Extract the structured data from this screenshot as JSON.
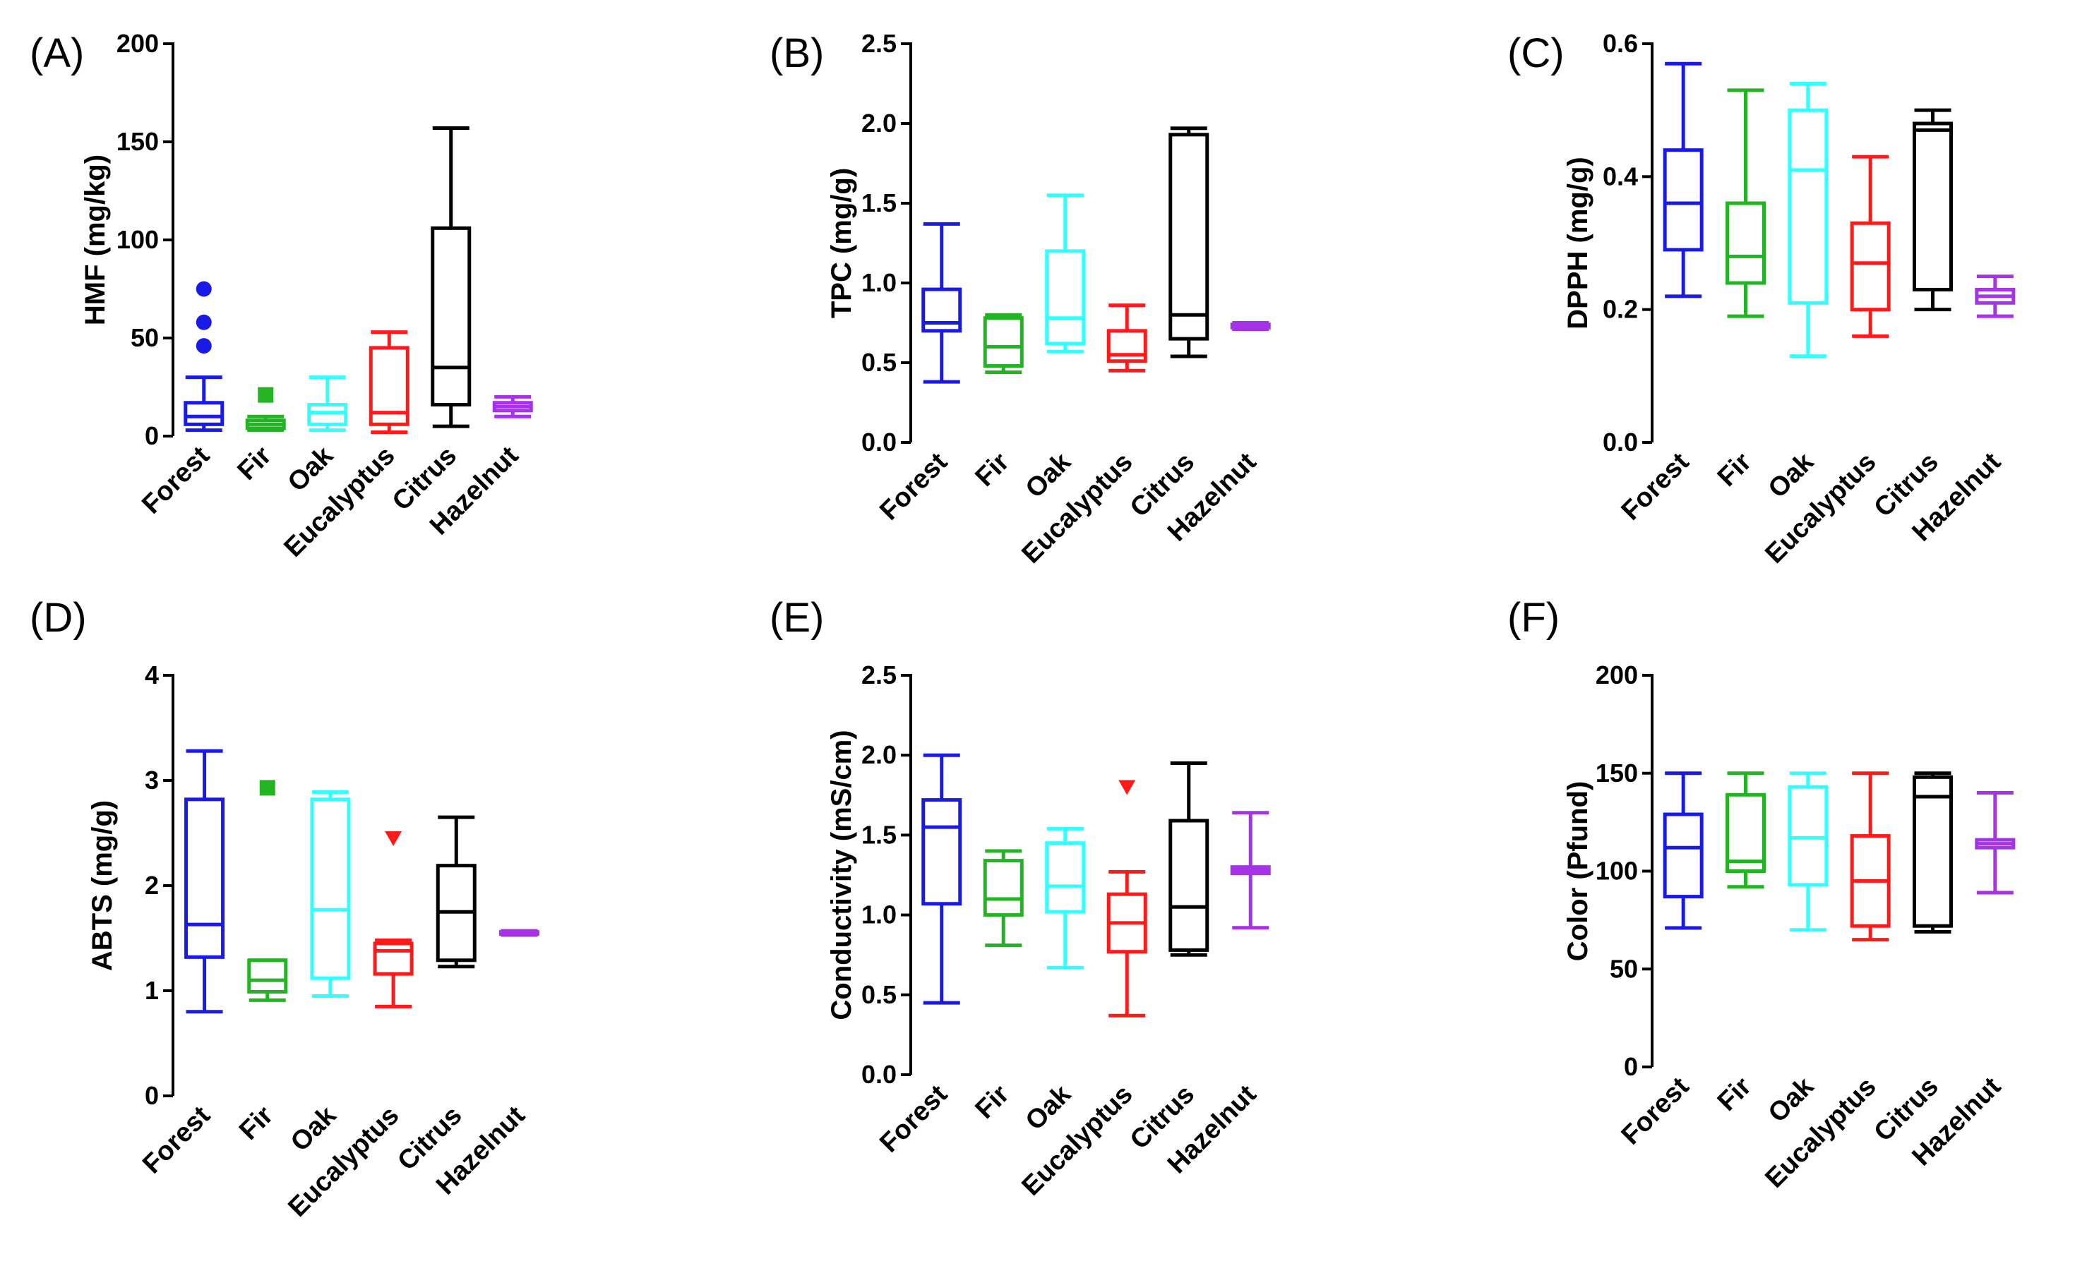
{
  "figure": {
    "background": "#ffffff"
  },
  "chart_data": [
    {
      "panel": "(A)",
      "type": "boxplot",
      "ylabel": "HMF (mg/kg)",
      "ylim": [
        0,
        200
      ],
      "yticks": [
        "0",
        "50",
        "100",
        "150",
        "200"
      ],
      "ytick_values": [
        0,
        50,
        100,
        150,
        200
      ],
      "categories": [
        "Forest",
        "Fir",
        "Oak",
        "Eucalyptus",
        "Citrus",
        "Hazelnut"
      ],
      "colors": [
        "#1a1ae6",
        "#22b422",
        "#33ffff",
        "#ff1a1a",
        "#000000",
        "#a633e6"
      ],
      "boxes": [
        {
          "min": 3,
          "q1": 6,
          "median": 10,
          "q3": 17,
          "max": 30
        },
        {
          "min": 3,
          "q1": 4,
          "median": 6,
          "q3": 8,
          "max": 10
        },
        {
          "min": 3,
          "q1": 6,
          "median": 12,
          "q3": 16,
          "max": 30
        },
        {
          "min": 2,
          "q1": 6,
          "median": 12,
          "q3": 45,
          "max": 53
        },
        {
          "min": 5,
          "q1": 16,
          "median": 35,
          "q3": 106,
          "max": 157
        },
        {
          "min": 10,
          "q1": 13,
          "median": 15,
          "q3": 17,
          "max": 20
        }
      ],
      "outliers": [
        {
          "category": "Forest",
          "value": 75,
          "shape": "circle"
        },
        {
          "category": "Forest",
          "value": 58,
          "shape": "circle"
        },
        {
          "category": "Forest",
          "value": 46,
          "shape": "circle"
        },
        {
          "category": "Fir",
          "value": 21,
          "shape": "square"
        }
      ]
    },
    {
      "panel": "(B)",
      "type": "boxplot",
      "ylabel": "TPC (mg/g)",
      "ylim": [
        0,
        2.5
      ],
      "yticks": [
        "0.0",
        "0.5",
        "1.0",
        "1.5",
        "2.0",
        "2.5"
      ],
      "ytick_values": [
        0,
        0.5,
        1.0,
        1.5,
        2.0,
        2.5
      ],
      "categories": [
        "Forest",
        "Fir",
        "Oak",
        "Eucalyptus",
        "Citrus",
        "Hazelnut"
      ],
      "colors": [
        "#1a1ae6",
        "#22b422",
        "#33ffff",
        "#ff1a1a",
        "#000000",
        "#a633e6"
      ],
      "boxes": [
        {
          "min": 0.38,
          "q1": 0.7,
          "median": 0.75,
          "q3": 0.96,
          "max": 1.37
        },
        {
          "min": 0.44,
          "q1": 0.48,
          "median": 0.6,
          "q3": 0.78,
          "max": 0.8
        },
        {
          "min": 0.57,
          "q1": 0.62,
          "median": 0.78,
          "q3": 1.2,
          "max": 1.55
        },
        {
          "min": 0.45,
          "q1": 0.51,
          "median": 0.55,
          "q3": 0.7,
          "max": 0.86
        },
        {
          "min": 0.54,
          "q1": 0.65,
          "median": 0.8,
          "q3": 1.93,
          "max": 1.97
        },
        {
          "min": 0.71,
          "q1": 0.72,
          "median": 0.73,
          "q3": 0.74,
          "max": 0.75
        }
      ],
      "outliers": []
    },
    {
      "panel": "(C)",
      "type": "boxplot",
      "ylabel": "DPPH (mg/g)",
      "ylim": [
        0,
        0.6
      ],
      "yticks": [
        "0.0",
        "0.2",
        "0.4",
        "0.6"
      ],
      "ytick_values": [
        0,
        0.2,
        0.4,
        0.6
      ],
      "categories": [
        "Forest",
        "Fir",
        "Oak",
        "Eucalyptus",
        "Citrus",
        "Hazelnut"
      ],
      "colors": [
        "#1a1ae6",
        "#22b422",
        "#33ffff",
        "#ff1a1a",
        "#000000",
        "#a633e6"
      ],
      "boxes": [
        {
          "min": 0.22,
          "q1": 0.29,
          "median": 0.36,
          "q3": 0.44,
          "max": 0.57
        },
        {
          "min": 0.19,
          "q1": 0.24,
          "median": 0.28,
          "q3": 0.36,
          "max": 0.53
        },
        {
          "min": 0.13,
          "q1": 0.21,
          "median": 0.41,
          "q3": 0.5,
          "max": 0.54
        },
        {
          "min": 0.16,
          "q1": 0.2,
          "median": 0.27,
          "q3": 0.33,
          "max": 0.43
        },
        {
          "min": 0.2,
          "q1": 0.23,
          "median": 0.47,
          "q3": 0.48,
          "max": 0.5
        },
        {
          "min": 0.19,
          "q1": 0.21,
          "median": 0.22,
          "q3": 0.23,
          "max": 0.25
        }
      ],
      "outliers": []
    },
    {
      "panel": "(D)",
      "type": "boxplot",
      "ylabel": "ABTS (mg/g)",
      "ylim": [
        0,
        4
      ],
      "yticks": [
        "0",
        "1",
        "2",
        "3",
        "4"
      ],
      "ytick_values": [
        0,
        1,
        2,
        3,
        4
      ],
      "categories": [
        "Forest",
        "Fir",
        "Oak",
        "Eucalyptus",
        "Citrus",
        "Hazelnut"
      ],
      "colors": [
        "#1a1ae6",
        "#22b422",
        "#33ffff",
        "#ff1a1a",
        "#000000",
        "#a633e6"
      ],
      "boxes": [
        {
          "min": 0.8,
          "q1": 1.32,
          "median": 1.63,
          "q3": 2.82,
          "max": 3.28
        },
        {
          "min": 0.91,
          "q1": 0.99,
          "median": 1.1,
          "q3": 1.29,
          "max": 1.29
        },
        {
          "min": 0.95,
          "q1": 1.12,
          "median": 1.77,
          "q3": 2.82,
          "max": 2.89
        },
        {
          "min": 0.85,
          "q1": 1.16,
          "median": 1.38,
          "q3": 1.45,
          "max": 1.48
        },
        {
          "min": 1.23,
          "q1": 1.29,
          "median": 1.75,
          "q3": 2.19,
          "max": 2.65
        },
        {
          "min": 1.53,
          "q1": 1.54,
          "median": 1.55,
          "q3": 1.56,
          "max": 1.57
        }
      ],
      "outliers": [
        {
          "category": "Fir",
          "value": 2.93,
          "shape": "square"
        },
        {
          "category": "Eucalyptus",
          "value": 2.45,
          "shape": "triangle"
        }
      ]
    },
    {
      "panel": "(E)",
      "type": "boxplot",
      "ylabel": "Conductivity (mS/cm)",
      "ylim": [
        0,
        2.5
      ],
      "yticks": [
        "0.0",
        "0.5",
        "1.0",
        "1.5",
        "2.0",
        "2.5"
      ],
      "ytick_values": [
        0,
        0.5,
        1.0,
        1.5,
        2.0,
        2.5
      ],
      "categories": [
        "Forest",
        "Fir",
        "Oak",
        "Eucalyptus",
        "Citrus",
        "Hazelnut"
      ],
      "colors": [
        "#1a1ae6",
        "#22b422",
        "#33ffff",
        "#ff1a1a",
        "#000000",
        "#a633e6"
      ],
      "boxes": [
        {
          "min": 0.45,
          "q1": 1.07,
          "median": 1.55,
          "q3": 1.72,
          "max": 2.0
        },
        {
          "min": 0.81,
          "q1": 1.0,
          "median": 1.1,
          "q3": 1.34,
          "max": 1.4
        },
        {
          "min": 0.67,
          "q1": 1.02,
          "median": 1.18,
          "q3": 1.45,
          "max": 1.54
        },
        {
          "min": 0.37,
          "q1": 0.77,
          "median": 0.95,
          "q3": 1.13,
          "max": 1.27
        },
        {
          "min": 0.75,
          "q1": 0.78,
          "median": 1.05,
          "q3": 1.59,
          "max": 1.95
        },
        {
          "min": 0.92,
          "q1": 1.26,
          "median": 1.28,
          "q3": 1.3,
          "max": 1.64
        }
      ],
      "outliers": [
        {
          "category": "Eucalyptus",
          "value": 1.8,
          "shape": "triangle"
        }
      ]
    },
    {
      "panel": "(F)",
      "type": "boxplot",
      "ylabel": "Color (Pfund)",
      "ylim": [
        0,
        200
      ],
      "yticks": [
        "0",
        "50",
        "100",
        "150",
        "200"
      ],
      "ytick_values": [
        0,
        50,
        100,
        150,
        200
      ],
      "categories": [
        "Forest",
        "Fir",
        "Oak",
        "Eucalyptus",
        "Citrus",
        "Hazelnut"
      ],
      "colors": [
        "#1a1ae6",
        "#22b422",
        "#33ffff",
        "#ff1a1a",
        "#000000",
        "#a633e6"
      ],
      "boxes": [
        {
          "min": 71,
          "q1": 87,
          "median": 112,
          "q3": 129,
          "max": 150
        },
        {
          "min": 92,
          "q1": 100,
          "median": 105,
          "q3": 139,
          "max": 150
        },
        {
          "min": 70,
          "q1": 93,
          "median": 117,
          "q3": 143,
          "max": 150
        },
        {
          "min": 65,
          "q1": 72,
          "median": 95,
          "q3": 118,
          "max": 150
        },
        {
          "min": 69,
          "q1": 72,
          "median": 138,
          "q3": 148,
          "max": 150
        },
        {
          "min": 89,
          "q1": 112,
          "median": 114,
          "q3": 116,
          "max": 140
        }
      ],
      "outliers": []
    }
  ]
}
